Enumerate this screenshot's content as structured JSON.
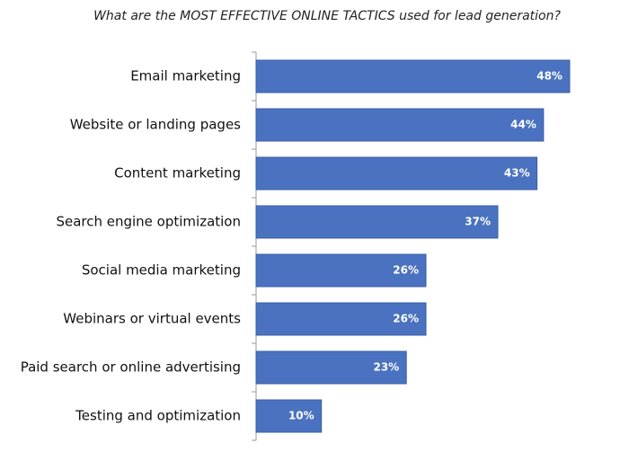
{
  "chart_data": {
    "type": "bar",
    "horizontal": true,
    "title": "What are the MOST EFFECTIVE ONLINE TACTICS used for lead generation?",
    "categories": [
      "Email marketing",
      "Website or landing pages",
      "Content marketing",
      "Search engine optimization",
      "Social media marketing",
      "Webinars or virtual events",
      "Paid search or online advertising",
      "Testing and optimization"
    ],
    "values": [
      48,
      44,
      43,
      37,
      26,
      26,
      23,
      10
    ],
    "value_labels": [
      "48%",
      "44%",
      "43%",
      "37%",
      "26%",
      "26%",
      "23%",
      "10%"
    ],
    "color": "#4a72c0"
  }
}
